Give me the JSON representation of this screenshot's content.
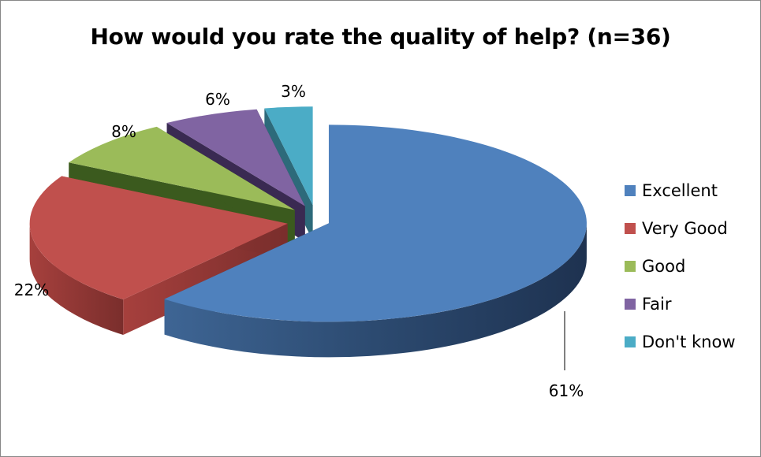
{
  "chart_data": {
    "type": "pie",
    "title": "How would you rate the quality of help?  (n=36)",
    "style": "3d-exploded",
    "legend_position": "right",
    "categories": [
      "Excellent",
      "Very Good",
      "Good",
      "Fair",
      "Don't know"
    ],
    "values": [
      61,
      22,
      8,
      6,
      3
    ],
    "labels": [
      "61%",
      "22%",
      "8%",
      "6%",
      "3%"
    ],
    "colors": [
      "#4F81BD",
      "#C0504D",
      "#9BBB59",
      "#8064A2",
      "#4BACC6"
    ]
  }
}
